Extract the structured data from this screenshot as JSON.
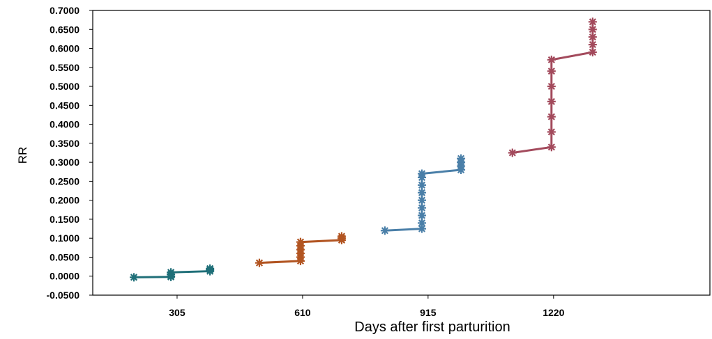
{
  "chart_data": {
    "type": "line",
    "title": "",
    "xlabel": "Days after first parturition",
    "ylabel": "RR",
    "xlim": [
      100,
      1600
    ],
    "ylim": [
      -0.05,
      0.7
    ],
    "x_ticks": [
      305,
      610,
      915,
      1220
    ],
    "x_tick_labels": [
      "305",
      "610",
      "915",
      "1220"
    ],
    "y_ticks": [
      -0.05,
      0,
      0.05,
      0.1,
      0.15,
      0.2,
      0.25,
      0.3,
      0.35,
      0.4,
      0.45,
      0.5,
      0.55,
      0.6,
      0.65,
      0.7
    ],
    "y_tick_labels": [
      "-0.0500",
      "0.0000",
      "0.0500",
      "0.1000",
      "0.1500",
      "0.2000",
      "0.2500",
      "0.3000",
      "0.3500",
      "0.4000",
      "0.4500",
      "0.5000",
      "0.5500",
      "0.6000",
      "0.6500",
      "0.7000"
    ],
    "grid": false,
    "legend": "none",
    "series": [
      {
        "color": "#1f6f78",
        "marker": "asterisk",
        "points": [
          [
            200,
            -0.003
          ],
          [
            290,
            -0.002
          ],
          [
            290,
            0.0
          ],
          [
            290,
            0.005
          ],
          [
            290,
            0.01
          ],
          [
            385,
            0.013
          ],
          [
            385,
            0.017
          ],
          [
            385,
            0.02
          ]
        ]
      },
      {
        "color": "#b25522",
        "marker": "asterisk",
        "points": [
          [
            505,
            0.035
          ],
          [
            605,
            0.04
          ],
          [
            605,
            0.05
          ],
          [
            605,
            0.06
          ],
          [
            605,
            0.07
          ],
          [
            605,
            0.08
          ],
          [
            605,
            0.09
          ],
          [
            705,
            0.095
          ],
          [
            705,
            0.1
          ],
          [
            705,
            0.105
          ]
        ]
      },
      {
        "color": "#4a7fa8",
        "marker": "asterisk",
        "points": [
          [
            810,
            0.12
          ],
          [
            900,
            0.125
          ],
          [
            900,
            0.14
          ],
          [
            900,
            0.16
          ],
          [
            900,
            0.18
          ],
          [
            900,
            0.2
          ],
          [
            900,
            0.22
          ],
          [
            900,
            0.24
          ],
          [
            900,
            0.26
          ],
          [
            900,
            0.27
          ],
          [
            995,
            0.28
          ],
          [
            995,
            0.29
          ],
          [
            995,
            0.3
          ],
          [
            995,
            0.31
          ]
        ]
      },
      {
        "color": "#a34a5c",
        "marker": "asterisk",
        "points": [
          [
            1120,
            0.325
          ],
          [
            1215,
            0.34
          ],
          [
            1215,
            0.38
          ],
          [
            1215,
            0.42
          ],
          [
            1215,
            0.46
          ],
          [
            1215,
            0.5
          ],
          [
            1215,
            0.54
          ],
          [
            1215,
            0.57
          ],
          [
            1315,
            0.59
          ],
          [
            1315,
            0.61
          ],
          [
            1315,
            0.63
          ],
          [
            1315,
            0.65
          ],
          [
            1315,
            0.67
          ]
        ]
      }
    ]
  }
}
